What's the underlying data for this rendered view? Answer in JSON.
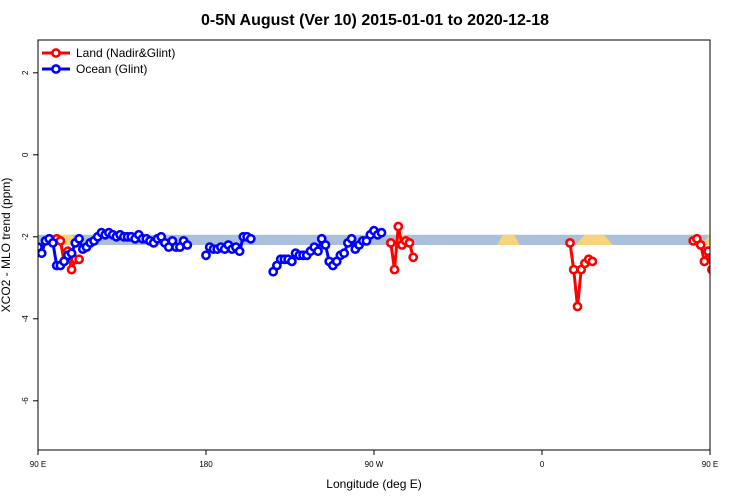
{
  "chart_data": {
    "type": "line",
    "title": "0-5N August (Ver 10)   2015-01-01 to 2020-12-18",
    "xlabel": "Longitude (deg E)",
    "ylabel": "XCO2 - MLO trend (ppm)",
    "xlim": [
      90,
      450
    ],
    "ylim": [
      -7.2,
      2.8
    ],
    "x_ticks": [
      {
        "value": 90,
        "label": "90 E"
      },
      {
        "value": 180,
        "label": "180"
      },
      {
        "value": 270,
        "label": "90 W"
      },
      {
        "value": 360,
        "label": "0"
      },
      {
        "value": 450,
        "label": "90 E"
      },
      {
        "value": 540,
        "label": "180"
      }
    ],
    "y_ticks": [
      {
        "value": 2,
        "label": "2"
      },
      {
        "value": 0,
        "label": "0"
      },
      {
        "value": -2,
        "label": "-2"
      },
      {
        "value": -4,
        "label": "-4"
      },
      {
        "value": -6,
        "label": "-6"
      }
    ],
    "band": {
      "y_min": -2.2,
      "y_max": -1.95,
      "color": "#a9bfdc"
    },
    "land_band_segments": [
      [
        96,
        112
      ],
      [
        282,
        288
      ],
      [
        336,
        348
      ],
      [
        378,
        398
      ],
      [
        446,
        460
      ],
      [
        500,
        508
      ]
    ],
    "land_band_color": "#f7d47a",
    "legend": {
      "position": "top-left"
    },
    "series": [
      {
        "name": "Land (Nadir&Glint)",
        "color": "#ff0000",
        "segments": [
          [
            [
              98,
              -2.1
            ],
            [
              100,
              -2.05
            ],
            [
              102,
              -2.1
            ],
            [
              104,
              -2.6
            ],
            [
              106,
              -2.35
            ],
            [
              108,
              -2.8
            ],
            [
              110,
              -2.55
            ],
            [
              112,
              -2.55
            ]
          ],
          [
            [
              279,
              -2.15
            ],
            [
              281,
              -2.8
            ],
            [
              283,
              -1.75
            ],
            [
              285,
              -2.2
            ],
            [
              287,
              -2.1
            ],
            [
              289,
              -2.15
            ],
            [
              291,
              -2.5
            ]
          ],
          [
            [
              375,
              -2.15
            ],
            [
              377,
              -2.8
            ],
            [
              379,
              -3.7
            ],
            [
              381,
              -2.8
            ],
            [
              383,
              -2.65
            ],
            [
              385,
              -2.55
            ],
            [
              387,
              -2.6
            ]
          ],
          [
            [
              441,
              -2.1
            ],
            [
              443,
              -2.05
            ],
            [
              445,
              -2.2
            ],
            [
              447,
              -2.6
            ],
            [
              449,
              -2.35
            ],
            [
              451,
              -2.8
            ],
            [
              453,
              -2.55
            ],
            [
              455,
              -2.55
            ]
          ]
        ]
      },
      {
        "name": "Ocean (Glint)",
        "color": "#0000ff",
        "segments": [
          [
            [
              90,
              -2.25
            ],
            [
              92,
              -2.4
            ],
            [
              94,
              -2.1
            ],
            [
              96,
              -2.05
            ],
            [
              98,
              -2.15
            ],
            [
              100,
              -2.7
            ],
            [
              102,
              -2.7
            ],
            [
              104,
              -2.6
            ],
            [
              106,
              -2.45
            ],
            [
              108,
              -2.4
            ],
            [
              110,
              -2.15
            ],
            [
              112,
              -2.05
            ],
            [
              114,
              -2.3
            ],
            [
              116,
              -2.25
            ],
            [
              118,
              -2.15
            ],
            [
              120,
              -2.1
            ],
            [
              122,
              -2.0
            ],
            [
              124,
              -1.9
            ],
            [
              126,
              -1.95
            ],
            [
              128,
              -1.9
            ],
            [
              130,
              -1.95
            ],
            [
              132,
              -2.0
            ],
            [
              134,
              -1.95
            ],
            [
              136,
              -2.0
            ],
            [
              138,
              -2.0
            ],
            [
              140,
              -2.0
            ],
            [
              142,
              -2.05
            ],
            [
              144,
              -1.95
            ],
            [
              146,
              -2.05
            ],
            [
              148,
              -2.05
            ],
            [
              150,
              -2.1
            ],
            [
              152,
              -2.15
            ],
            [
              154,
              -2.05
            ],
            [
              156,
              -2.0
            ],
            [
              158,
              -2.15
            ],
            [
              160,
              -2.25
            ],
            [
              162,
              -2.1
            ],
            [
              164,
              -2.25
            ],
            [
              166,
              -2.25
            ],
            [
              168,
              -2.1
            ],
            [
              170,
              -2.2
            ]
          ],
          [
            [
              180,
              -2.45
            ],
            [
              182,
              -2.25
            ],
            [
              184,
              -2.3
            ],
            [
              186,
              -2.3
            ],
            [
              188,
              -2.25
            ],
            [
              190,
              -2.3
            ],
            [
              192,
              -2.2
            ],
            [
              194,
              -2.3
            ],
            [
              196,
              -2.25
            ],
            [
              198,
              -2.35
            ],
            [
              200,
              -2.0
            ],
            [
              202,
              -2.0
            ],
            [
              204,
              -2.05
            ]
          ],
          [
            [
              216,
              -2.85
            ],
            [
              218,
              -2.7
            ],
            [
              220,
              -2.55
            ],
            [
              222,
              -2.55
            ],
            [
              224,
              -2.55
            ],
            [
              226,
              -2.6
            ],
            [
              228,
              -2.4
            ],
            [
              230,
              -2.45
            ],
            [
              232,
              -2.45
            ],
            [
              234,
              -2.45
            ],
            [
              236,
              -2.35
            ],
            [
              238,
              -2.25
            ],
            [
              240,
              -2.35
            ],
            [
              242,
              -2.05
            ],
            [
              244,
              -2.2
            ],
            [
              246,
              -2.6
            ],
            [
              248,
              -2.7
            ],
            [
              250,
              -2.6
            ],
            [
              252,
              -2.45
            ],
            [
              254,
              -2.4
            ],
            [
              256,
              -2.15
            ],
            [
              258,
              -2.05
            ],
            [
              260,
              -2.3
            ],
            [
              262,
              -2.2
            ],
            [
              264,
              -2.1
            ],
            [
              266,
              -2.1
            ],
            [
              268,
              -1.95
            ],
            [
              270,
              -1.85
            ],
            [
              272,
              -1.95
            ],
            [
              274,
              -1.9
            ]
          ]
        ]
      }
    ]
  }
}
